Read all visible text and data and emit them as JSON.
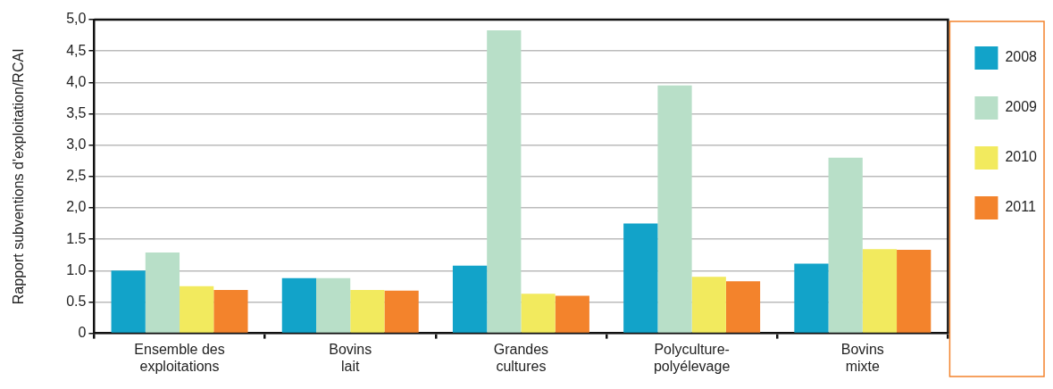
{
  "chart_data": {
    "type": "bar",
    "ylabel": "Rapport subventions d'exploitation/RCAI",
    "categories": [
      "Ensemble des exploitations",
      "Bovins lait",
      "Grandes cultures",
      "Polyculture-polyélevage",
      "Bovins mixte"
    ],
    "series": [
      {
        "name": "2008",
        "color": "#12a3c9",
        "values": [
          1.0,
          0.88,
          1.08,
          1.75,
          1.11
        ]
      },
      {
        "name": "2009",
        "color": "#b8dfc8",
        "values": [
          1.29,
          0.88,
          4.83,
          3.95,
          2.8
        ]
      },
      {
        "name": "2010",
        "color": "#f2ea5e",
        "values": [
          0.75,
          0.69,
          0.63,
          0.9,
          1.34
        ]
      },
      {
        "name": "2011",
        "color": "#f3832c",
        "values": [
          0.69,
          0.68,
          0.6,
          0.83,
          1.33
        ]
      }
    ],
    "ylim": [
      0,
      5
    ],
    "yticks": [
      {
        "value": 0,
        "label": "0"
      },
      {
        "value": 0.5,
        "label": "0.5"
      },
      {
        "value": 1,
        "label": "1.0"
      },
      {
        "value": 1.5,
        "label": "1.5"
      },
      {
        "value": 2,
        "label": "2,0"
      },
      {
        "value": 2.5,
        "label": "2,5"
      },
      {
        "value": 3,
        "label": "3,0"
      },
      {
        "value": 3.5,
        "label": "3,5"
      },
      {
        "value": 4,
        "label": "4,0"
      },
      {
        "value": 4.5,
        "label": "4,5"
      },
      {
        "value": 5,
        "label": "5,0"
      }
    ],
    "grid": "y",
    "legend": "right"
  }
}
